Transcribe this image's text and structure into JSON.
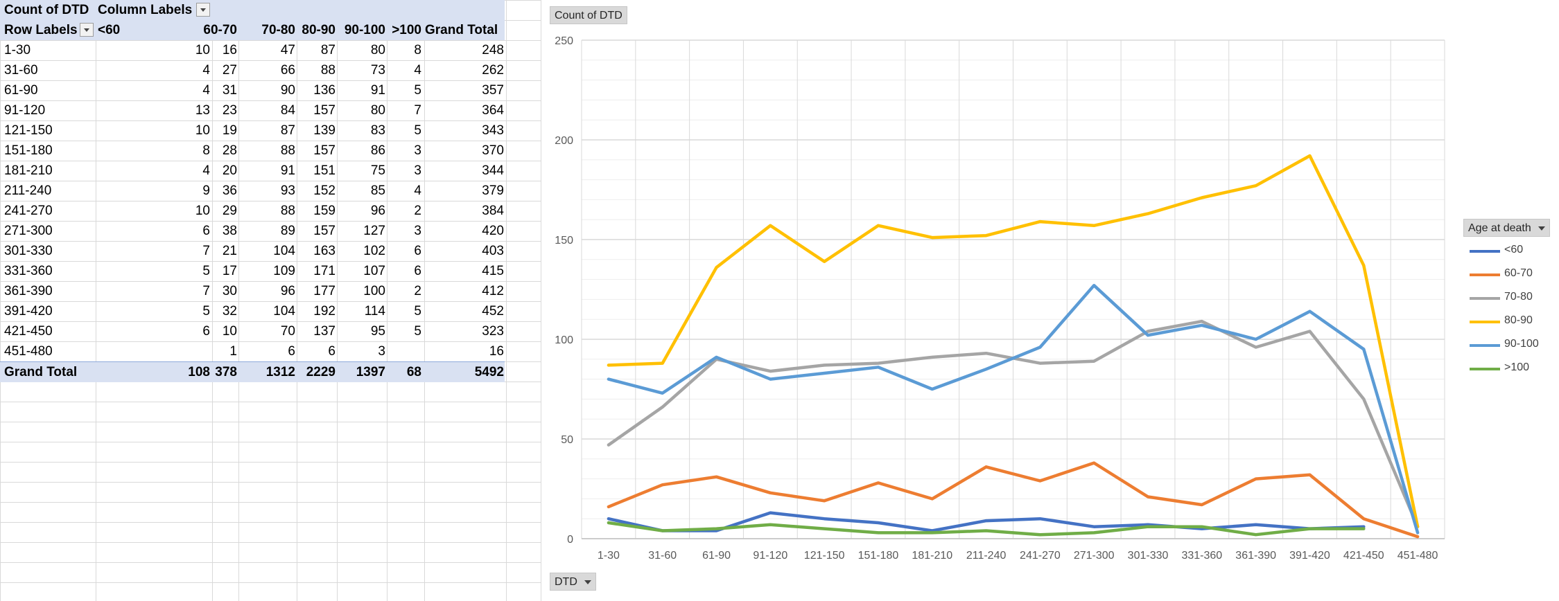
{
  "pivot": {
    "title": "Count of DTD",
    "column_labels": "Column Labels",
    "row_labels": "Row Labels",
    "grand_total_label": "Grand Total",
    "columns": [
      "<60",
      "60-70",
      "70-80",
      "80-90",
      "90-100",
      ">100",
      "Grand Total"
    ],
    "rows": [
      {
        "label": "1-30",
        "values": [
          "10",
          "16",
          "47",
          "87",
          "80",
          "8",
          "248"
        ]
      },
      {
        "label": "31-60",
        "values": [
          "4",
          "27",
          "66",
          "88",
          "73",
          "4",
          "262"
        ]
      },
      {
        "label": "61-90",
        "values": [
          "4",
          "31",
          "90",
          "136",
          "91",
          "5",
          "357"
        ]
      },
      {
        "label": "91-120",
        "values": [
          "13",
          "23",
          "84",
          "157",
          "80",
          "7",
          "364"
        ]
      },
      {
        "label": "121-150",
        "values": [
          "10",
          "19",
          "87",
          "139",
          "83",
          "5",
          "343"
        ]
      },
      {
        "label": "151-180",
        "values": [
          "8",
          "28",
          "88",
          "157",
          "86",
          "3",
          "370"
        ]
      },
      {
        "label": "181-210",
        "values": [
          "4",
          "20",
          "91",
          "151",
          "75",
          "3",
          "344"
        ]
      },
      {
        "label": "211-240",
        "values": [
          "9",
          "36",
          "93",
          "152",
          "85",
          "4",
          "379"
        ]
      },
      {
        "label": "241-270",
        "values": [
          "10",
          "29",
          "88",
          "159",
          "96",
          "2",
          "384"
        ]
      },
      {
        "label": "271-300",
        "values": [
          "6",
          "38",
          "89",
          "157",
          "127",
          "3",
          "420"
        ]
      },
      {
        "label": "301-330",
        "values": [
          "7",
          "21",
          "104",
          "163",
          "102",
          "6",
          "403"
        ]
      },
      {
        "label": "331-360",
        "values": [
          "5",
          "17",
          "109",
          "171",
          "107",
          "6",
          "415"
        ]
      },
      {
        "label": "361-390",
        "values": [
          "7",
          "30",
          "96",
          "177",
          "100",
          "2",
          "412"
        ]
      },
      {
        "label": "391-420",
        "values": [
          "5",
          "32",
          "104",
          "192",
          "114",
          "5",
          "452"
        ]
      },
      {
        "label": "421-450",
        "values": [
          "6",
          "10",
          "70",
          "137",
          "95",
          "5",
          "323"
        ]
      },
      {
        "label": "451-480",
        "values": [
          "",
          "1",
          "6",
          "6",
          "3",
          "",
          "16"
        ]
      }
    ],
    "totals": [
      "108",
      "378",
      "1312",
      "2229",
      "1397",
      "68",
      "5492"
    ]
  },
  "chart_data": {
    "type": "line",
    "value_field_button": "Count of DTD",
    "axis_field_button": "DTD",
    "legend_title": "Age at death",
    "legend_position": "right",
    "grid": true,
    "ylim": [
      0,
      250
    ],
    "yticks": [
      0,
      50,
      100,
      150,
      200,
      250
    ],
    "categories": [
      "1-30",
      "31-60",
      "61-90",
      "91-120",
      "121-150",
      "151-180",
      "181-210",
      "211-240",
      "241-270",
      "271-300",
      "301-330",
      "331-360",
      "361-390",
      "391-420",
      "421-450",
      "451-480"
    ],
    "series": [
      {
        "name": "<60",
        "color": "#4472c4",
        "values": [
          10,
          4,
          4,
          13,
          10,
          8,
          4,
          9,
          10,
          6,
          7,
          5,
          7,
          5,
          6,
          null
        ]
      },
      {
        "name": "60-70",
        "color": "#ed7d31",
        "values": [
          16,
          27,
          31,
          23,
          19,
          28,
          20,
          36,
          29,
          38,
          21,
          17,
          30,
          32,
          10,
          1
        ]
      },
      {
        "name": "70-80",
        "color": "#a5a5a5",
        "values": [
          47,
          66,
          90,
          84,
          87,
          88,
          91,
          93,
          88,
          89,
          104,
          109,
          96,
          104,
          70,
          6
        ]
      },
      {
        "name": "80-90",
        "color": "#ffc000",
        "values": [
          87,
          88,
          136,
          157,
          139,
          157,
          151,
          152,
          159,
          157,
          163,
          171,
          177,
          192,
          137,
          6
        ]
      },
      {
        "name": "90-100",
        "color": "#5b9bd5",
        "values": [
          80,
          73,
          91,
          80,
          83,
          86,
          75,
          85,
          96,
          127,
          102,
          107,
          100,
          114,
          95,
          3
        ]
      },
      {
        "name": ">100",
        "color": "#70ad47",
        "values": [
          8,
          4,
          5,
          7,
          5,
          3,
          3,
          4,
          2,
          3,
          6,
          6,
          2,
          5,
          5,
          null
        ]
      }
    ]
  }
}
